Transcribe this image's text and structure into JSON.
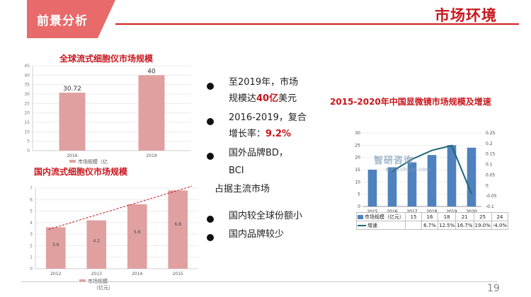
{
  "header": {
    "section_label": "前景分析",
    "title": "市场环境",
    "page_number": "19",
    "accent_color": "#d31b1b"
  },
  "bullets": {
    "b1_line1": "至2019年，市场",
    "b1_line2_pre": "规模达",
    "b1_line2_hl": "40亿",
    "b1_line2_post": "美元",
    "b2_line1": "2016-2019，复合",
    "b2_line2_pre": "增长率：",
    "b2_line2_hl": "9.2%",
    "b3_line1": "国外品牌BD，",
    "b3_line2": "BCI",
    "b3_line3": "占据主流市场",
    "b4": "国内较全球份额小",
    "b5": "国内品牌较少"
  },
  "watermark": {
    "logo_text": "智研咨询",
    "url": "www.chyxx.com"
  },
  "chart_data": [
    {
      "type": "bar",
      "title": "全球流式细胞仪市场规模",
      "categories": [
        "2016",
        "2019"
      ],
      "series": [
        {
          "name": "市场规模（亿",
          "values": [
            30.72,
            40
          ]
        }
      ],
      "data_labels": [
        "30.72",
        "40"
      ],
      "yticks": [
        "0",
        "5",
        "10",
        "15",
        "20",
        "25",
        "30",
        "35",
        "40",
        "45"
      ],
      "ylim": [
        0,
        45
      ],
      "bar_color": "#e0a0a0",
      "legend": "bottom"
    },
    {
      "type": "bar",
      "title": "国内流式细胞仪市场规模",
      "categories": [
        "2012",
        "2013",
        "2014",
        "2015"
      ],
      "series": [
        {
          "name": "市场规模（亿元）",
          "values": [
            3.6,
            4.2,
            5.6,
            6.8
          ]
        }
      ],
      "data_labels": [
        "3.6",
        "4.2",
        "5.6",
        "6.8"
      ],
      "yticks": [
        "0",
        "1",
        "2",
        "3",
        "4",
        "5",
        "6",
        "7"
      ],
      "ylim": [
        0,
        7
      ],
      "trendline": true,
      "bar_color": "#e0a0a0",
      "legend": "bottom"
    },
    {
      "type": "bar",
      "title": "2015-2020年中国显微镜市场规模及增速",
      "categories": [
        "2015",
        "2016",
        "2017",
        "2018",
        "2019",
        "2020"
      ],
      "series": [
        {
          "name": "市场规模（亿元）",
          "values": [
            15,
            16,
            18,
            21,
            25,
            24
          ],
          "color": "#4e81bd"
        },
        {
          "name": "增速",
          "values": [
            null,
            0.067,
            0.125,
            0.167,
            0.19,
            -0.04
          ],
          "display": [
            "",
            "6.7%",
            "12.5%",
            "16.7%",
            "19.0%",
            "-4.0%"
          ],
          "color": "#1d6777",
          "axis": "right"
        }
      ],
      "yticks": [
        "0",
        "5",
        "10",
        "15",
        "20",
        "25",
        "30"
      ],
      "ylim": [
        0,
        30
      ],
      "y2ticks": [
        "-0.1",
        "-0.05",
        "0",
        "0.05",
        "0.1",
        "0.15",
        "0.2",
        "0.25"
      ],
      "y2lim": [
        -0.1,
        0.25
      ],
      "legend": "table"
    }
  ]
}
